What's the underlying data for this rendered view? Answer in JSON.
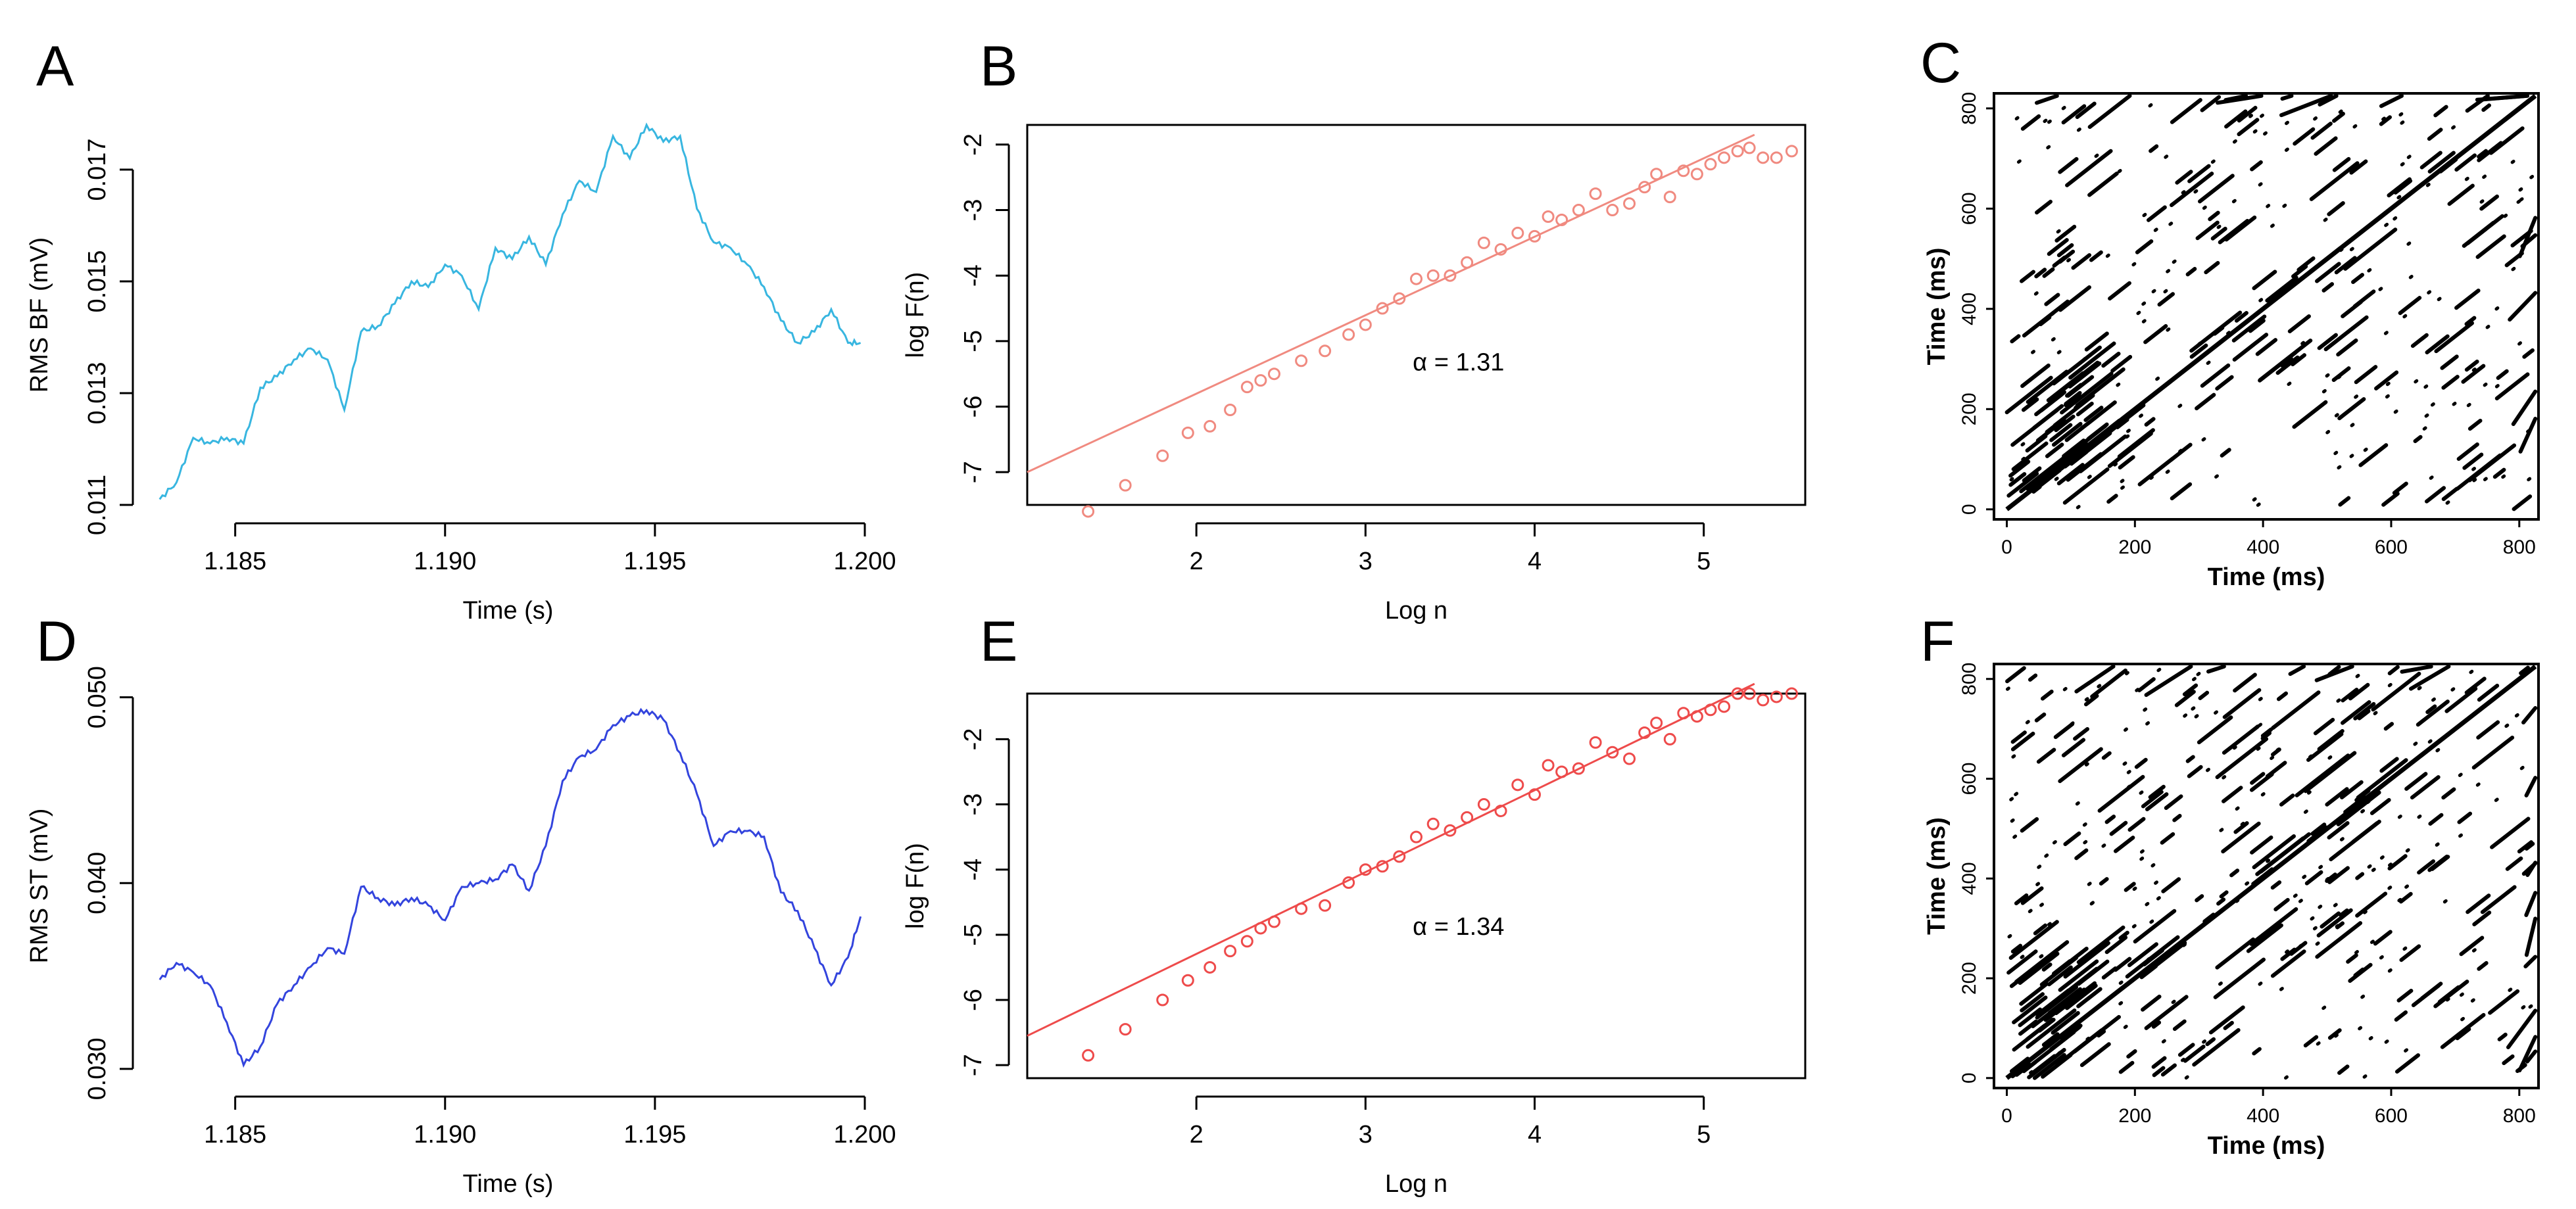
{
  "colors": {
    "panel_a_line": "#38b6e0",
    "panel_d_line": "#3344dd",
    "panel_b_points": "#f08a80",
    "panel_e_points": "#ee4b4b",
    "recurrence": "#000000"
  },
  "chart_data": [
    {
      "id": "A",
      "type": "line",
      "letter": "A",
      "xlabel": "Time (s)",
      "ylabel": "RMS BF (mV)",
      "xlim": [
        1.183,
        1.2
      ],
      "ylim": [
        0.011,
        0.0178
      ],
      "xticks": [
        1.185,
        1.19,
        1.195,
        1.2
      ],
      "xtick_labels": [
        "1.185",
        "1.190",
        "1.195",
        "1.200"
      ],
      "yticks": [
        0.011,
        0.013,
        0.015,
        0.017
      ],
      "ytick_labels": [
        "0.011",
        "0.013",
        "0.015",
        "0.017"
      ],
      "series": [
        {
          "x": [
            1.1832,
            1.1836,
            1.184,
            1.1844,
            1.1848,
            1.1852,
            1.1856,
            1.186,
            1.1864,
            1.1868,
            1.1872,
            1.1876,
            1.188,
            1.1884,
            1.1888,
            1.1892,
            1.1896,
            1.19,
            1.1904,
            1.1908,
            1.1912,
            1.1916,
            1.192,
            1.1924,
            1.1928,
            1.1932,
            1.1936,
            1.194,
            1.1944,
            1.1948,
            1.1952,
            1.1956,
            1.196,
            1.1964,
            1.1968,
            1.1972,
            1.1976,
            1.198,
            1.1984,
            1.1988,
            1.1992,
            1.1996,
            1.1999
          ],
          "y": [
            0.0111,
            0.0114,
            0.0122,
            0.0121,
            0.0122,
            0.0121,
            0.0131,
            0.0133,
            0.0136,
            0.0138,
            0.0136,
            0.0127,
            0.0141,
            0.0142,
            0.0146,
            0.015,
            0.0149,
            0.0153,
            0.0151,
            0.0145,
            0.0156,
            0.0154,
            0.0158,
            0.0153,
            0.0162,
            0.0168,
            0.0166,
            0.0176,
            0.0172,
            0.0178,
            0.0175,
            0.0176,
            0.0163,
            0.0157,
            0.0156,
            0.0153,
            0.0149,
            0.0143,
            0.0139,
            0.0141,
            0.0145,
            0.0139,
            0.0139
          ]
        }
      ]
    },
    {
      "id": "B",
      "type": "scatter",
      "letter": "B",
      "xlabel": "Log n",
      "ylabel": "log F(n)",
      "xlim": [
        1.0,
        5.6
      ],
      "ylim": [
        -7.5,
        -1.7
      ],
      "xticks": [
        2,
        3,
        4,
        5
      ],
      "xtick_labels": [
        "2",
        "3",
        "4",
        "5"
      ],
      "yticks": [
        -7,
        -6,
        -5,
        -4,
        -3,
        -2
      ],
      "ytick_labels": [
        "-7",
        "-6",
        "-5",
        "-4",
        "-3",
        "-2"
      ],
      "annotation": "α = 1.31",
      "fit_line": {
        "x": [
          1.0,
          5.3
        ],
        "y": [
          -7.0,
          -1.85
        ]
      },
      "series": [
        {
          "x": [
            1.36,
            1.58,
            1.8,
            1.95,
            2.08,
            2.2,
            2.3,
            2.38,
            2.46,
            2.62,
            2.76,
            2.9,
            3.0,
            3.1,
            3.2,
            3.3,
            3.4,
            3.5,
            3.6,
            3.7,
            3.8,
            3.9,
            4.0,
            4.08,
            4.16,
            4.26,
            4.36,
            4.46,
            4.56,
            4.65,
            4.72,
            4.8,
            4.88,
            4.96,
            5.04,
            5.12,
            5.2,
            5.27,
            5.35,
            5.43,
            5.52
          ],
          "y": [
            -7.6,
            -7.2,
            -6.75,
            -6.4,
            -6.3,
            -6.05,
            -5.7,
            -5.6,
            -5.5,
            -5.3,
            -5.15,
            -4.9,
            -4.75,
            -4.5,
            -4.35,
            -4.05,
            -4.0,
            -4.0,
            -3.8,
            -3.5,
            -3.6,
            -3.35,
            -3.4,
            -3.1,
            -3.15,
            -3.0,
            -2.75,
            -3.0,
            -2.9,
            -2.65,
            -2.45,
            -2.8,
            -2.4,
            -2.45,
            -2.3,
            -2.2,
            -2.1,
            -2.05,
            -2.2,
            -2.2,
            -2.1
          ]
        }
      ]
    },
    {
      "id": "C",
      "type": "heatmap",
      "letter": "C",
      "xlabel": "Time (ms)",
      "ylabel": "Time (ms)",
      "xlim": [
        -20,
        830
      ],
      "ylim": [
        -20,
        830
      ],
      "xticks": [
        0,
        200,
        400,
        600,
        800
      ],
      "xtick_labels": [
        "0",
        "200",
        "400",
        "600",
        "800"
      ],
      "yticks": [
        0,
        200,
        400,
        600,
        800
      ],
      "ytick_labels": [
        "0",
        "200",
        "400",
        "600",
        "800"
      ]
    },
    {
      "id": "D",
      "type": "line",
      "letter": "D",
      "xlabel": "Time (s)",
      "ylabel": "RMS ST (mV)",
      "xlim": [
        1.183,
        1.2
      ],
      "ylim": [
        0.0295,
        0.0502
      ],
      "xticks": [
        1.185,
        1.19,
        1.195,
        1.2
      ],
      "xtick_labels": [
        "1.185",
        "1.190",
        "1.195",
        "1.200"
      ],
      "yticks": [
        0.03,
        0.04,
        0.05
      ],
      "ytick_labels": [
        "0.030",
        "0.040",
        "0.050"
      ],
      "series": [
        {
          "x": [
            1.1832,
            1.1836,
            1.184,
            1.1844,
            1.1848,
            1.1852,
            1.1856,
            1.186,
            1.1864,
            1.1868,
            1.1872,
            1.1876,
            1.188,
            1.1884,
            1.1888,
            1.1892,
            1.1896,
            1.19,
            1.1904,
            1.1908,
            1.1912,
            1.1916,
            1.192,
            1.1924,
            1.1928,
            1.1932,
            1.1936,
            1.194,
            1.1944,
            1.1948,
            1.1952,
            1.1956,
            1.196,
            1.1964,
            1.1968,
            1.1972,
            1.1976,
            1.198,
            1.1984,
            1.1988,
            1.1992,
            1.1996,
            1.1999
          ],
          "y": [
            0.0348,
            0.0357,
            0.0352,
            0.0345,
            0.0325,
            0.0302,
            0.0312,
            0.0335,
            0.0345,
            0.0355,
            0.0365,
            0.0362,
            0.0398,
            0.0392,
            0.0388,
            0.0392,
            0.0388,
            0.038,
            0.0398,
            0.04,
            0.0402,
            0.041,
            0.0396,
            0.042,
            0.0455,
            0.0468,
            0.0472,
            0.0485,
            0.049,
            0.0493,
            0.0488,
            0.047,
            0.0448,
            0.042,
            0.0428,
            0.0428,
            0.0425,
            0.0395,
            0.0385,
            0.0365,
            0.0345,
            0.036,
            0.0382
          ]
        }
      ]
    },
    {
      "id": "E",
      "type": "scatter",
      "letter": "E",
      "xlabel": "Log n",
      "ylabel": "log F(n)",
      "xlim": [
        1.0,
        5.6
      ],
      "ylim": [
        -7.2,
        -1.3
      ],
      "xticks": [
        2,
        3,
        4,
        5
      ],
      "xtick_labels": [
        "2",
        "3",
        "4",
        "5"
      ],
      "yticks": [
        -7,
        -6,
        -5,
        -4,
        -3,
        -2
      ],
      "ytick_labels": [
        "-7",
        "-6",
        "-5",
        "-4",
        "-3",
        "-2"
      ],
      "annotation": "α = 1.34",
      "fit_line": {
        "x": [
          1.0,
          5.3
        ],
        "y": [
          -6.55,
          -1.15
        ]
      },
      "series": [
        {
          "x": [
            1.36,
            1.58,
            1.8,
            1.95,
            2.08,
            2.2,
            2.3,
            2.38,
            2.46,
            2.62,
            2.76,
            2.9,
            3.0,
            3.1,
            3.2,
            3.3,
            3.4,
            3.5,
            3.6,
            3.7,
            3.8,
            3.9,
            4.0,
            4.08,
            4.16,
            4.26,
            4.36,
            4.46,
            4.56,
            4.65,
            4.72,
            4.8,
            4.88,
            4.96,
            5.04,
            5.12,
            5.2,
            5.27,
            5.35,
            5.43,
            5.52
          ],
          "y": [
            -6.85,
            -6.45,
            -6.0,
            -5.7,
            -5.5,
            -5.25,
            -5.1,
            -4.9,
            -4.8,
            -4.6,
            -4.55,
            -4.2,
            -4.0,
            -3.95,
            -3.8,
            -3.5,
            -3.3,
            -3.4,
            -3.2,
            -3.0,
            -3.1,
            -2.7,
            -2.85,
            -2.4,
            -2.5,
            -2.45,
            -2.05,
            -2.2,
            -2.3,
            -1.9,
            -1.75,
            -2.0,
            -1.6,
            -1.65,
            -1.55,
            -1.5,
            -1.3,
            -1.3,
            -1.4,
            -1.35,
            -1.3
          ]
        }
      ]
    },
    {
      "id": "F",
      "type": "heatmap",
      "letter": "F",
      "xlabel": "Time (ms)",
      "ylabel": "Time (ms)",
      "xlim": [
        -20,
        830
      ],
      "ylim": [
        -20,
        830
      ],
      "xticks": [
        0,
        200,
        400,
        600,
        800
      ],
      "xtick_labels": [
        "0",
        "200",
        "400",
        "600",
        "800"
      ],
      "yticks": [
        0,
        200,
        400,
        600,
        800
      ],
      "ytick_labels": [
        "0",
        "200",
        "400",
        "600",
        "800"
      ]
    }
  ]
}
